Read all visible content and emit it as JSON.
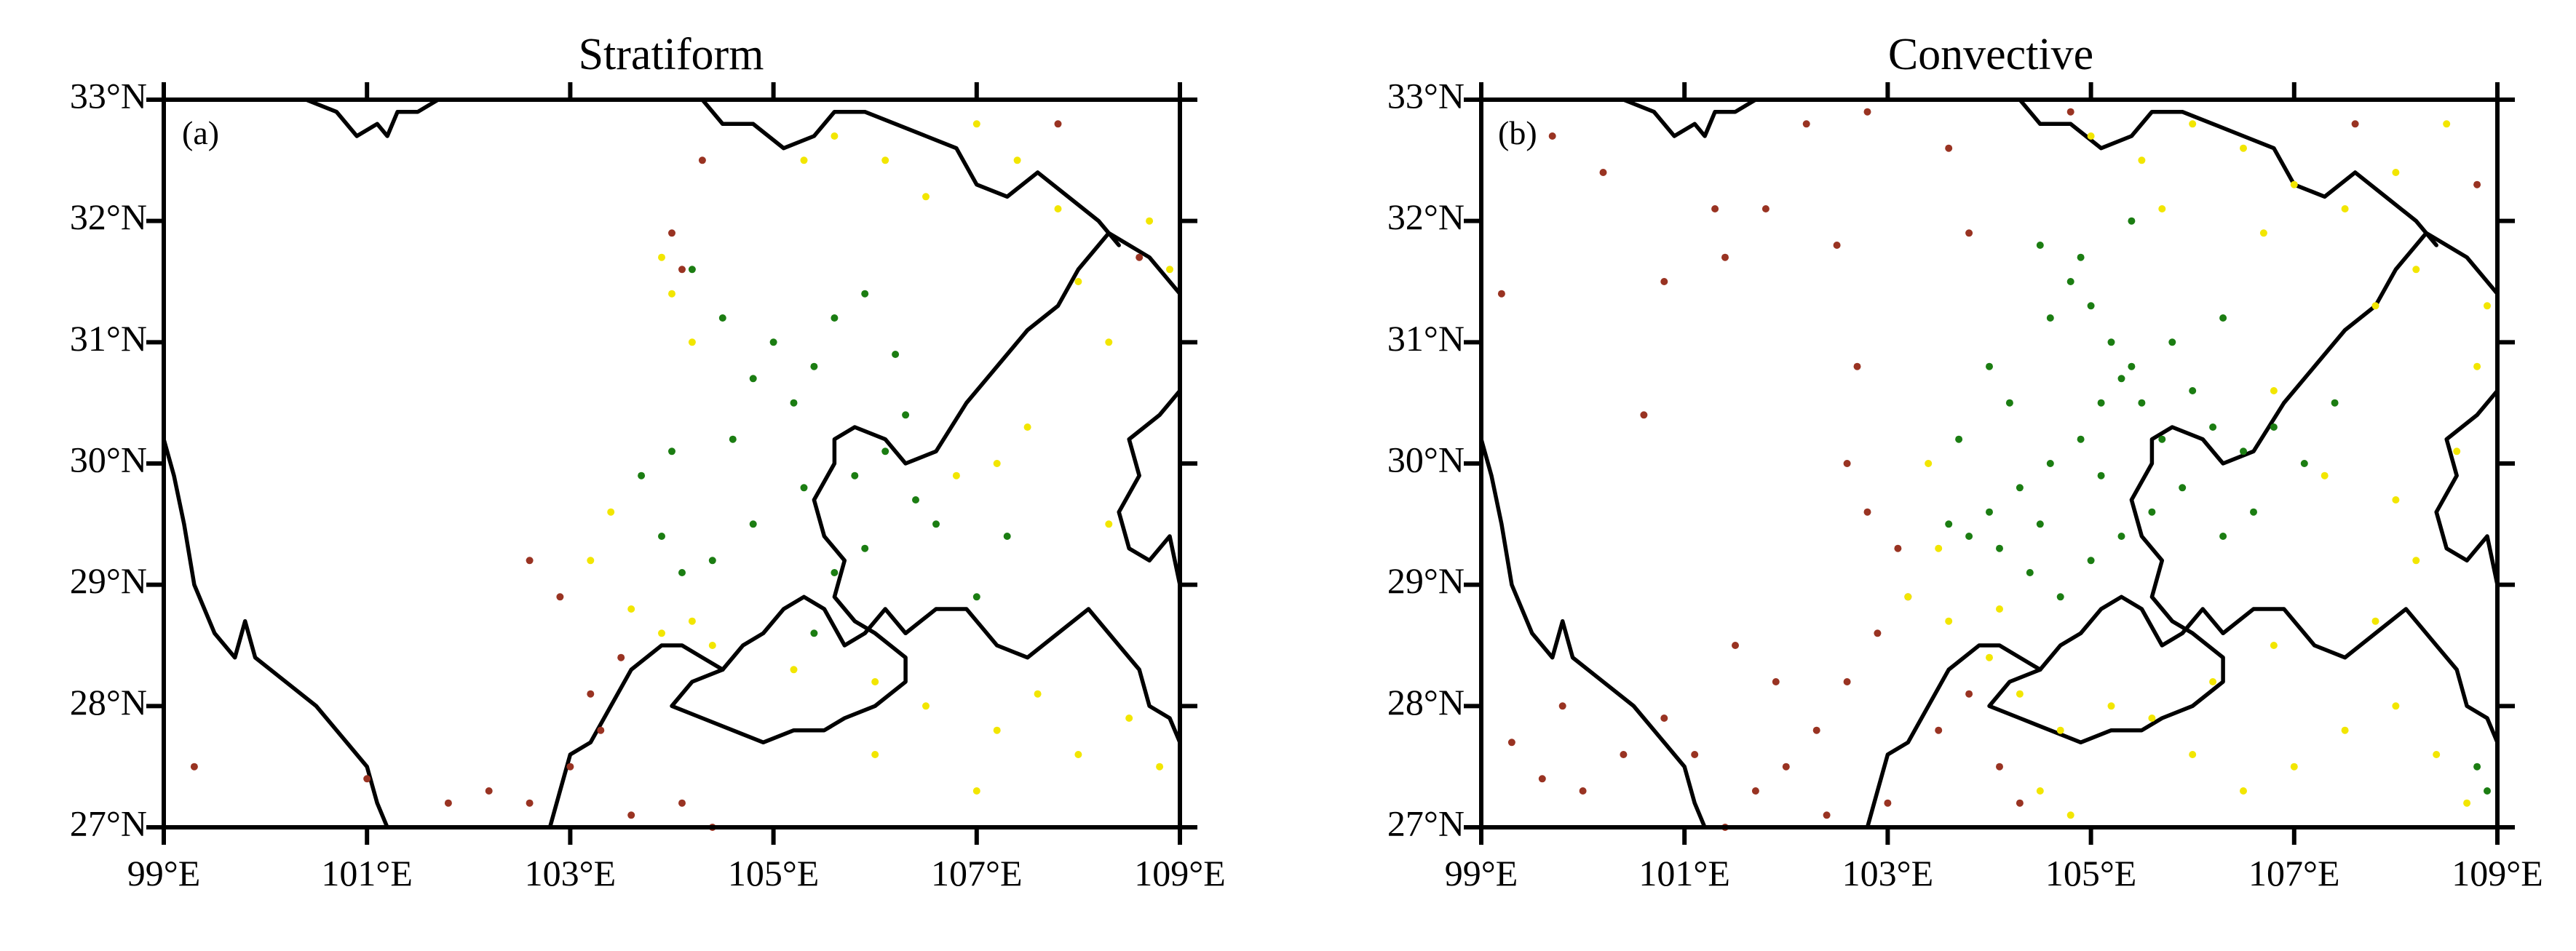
{
  "figure": {
    "panels": [
      {
        "title": "Stratiform",
        "letter": "(a)",
        "lat_labels": [
          "33°N",
          "32°N",
          "31°N",
          "30°N",
          "29°N",
          "28°N",
          "27°N"
        ],
        "lon_labels": [
          "99°E",
          "101°E",
          "103°E",
          "105°E",
          "107°E",
          "109°E"
        ]
      },
      {
        "title": "Convective",
        "letter": "(b)",
        "lat_labels": [
          "33°N",
          "32°N",
          "31°N",
          "30°N",
          "29°N",
          "28°N",
          "27°N"
        ],
        "lon_labels": [
          "99°E",
          "101°E",
          "103°E",
          "105°E",
          "107°E",
          "109°E"
        ]
      }
    ]
  },
  "map": {
    "extent": {
      "lon": [
        99,
        109
      ],
      "lat": [
        27,
        33
      ]
    },
    "lat_ticks": [
      33,
      32,
      31,
      30,
      29,
      28,
      27
    ],
    "lon_ticks": [
      99,
      101,
      103,
      105,
      107,
      109
    ],
    "point_colors": {
      "green": "#1b7d12",
      "yellow": "#f2e600",
      "brown": "#993322"
    },
    "boundaries": [
      [
        [
          99.0,
          30.2
        ],
        [
          99.1,
          29.9
        ],
        [
          99.2,
          29.5
        ],
        [
          99.3,
          29.0
        ],
        [
          99.5,
          28.6
        ],
        [
          99.7,
          28.4
        ],
        [
          99.8,
          28.7
        ],
        [
          99.9,
          28.4
        ],
        [
          100.2,
          28.2
        ],
        [
          100.5,
          28.0
        ],
        [
          100.8,
          27.7
        ],
        [
          101.0,
          27.5
        ],
        [
          101.1,
          27.2
        ],
        [
          101.2,
          27.0
        ]
      ],
      [
        [
          100.4,
          33.0
        ],
        [
          100.7,
          32.9
        ],
        [
          100.9,
          32.7
        ],
        [
          101.1,
          32.8
        ],
        [
          101.2,
          32.7
        ],
        [
          101.3,
          32.9
        ],
        [
          101.5,
          32.9
        ],
        [
          101.7,
          33.0
        ]
      ],
      [
        [
          102.8,
          27.0
        ],
        [
          102.9,
          27.3
        ],
        [
          103.0,
          27.6
        ],
        [
          103.2,
          27.7
        ],
        [
          103.4,
          28.0
        ],
        [
          103.6,
          28.3
        ],
        [
          103.9,
          28.5
        ],
        [
          104.1,
          28.5
        ],
        [
          104.3,
          28.4
        ],
        [
          104.5,
          28.3
        ]
      ],
      [
        [
          104.5,
          28.3
        ],
        [
          104.2,
          28.2
        ],
        [
          104.0,
          28.0
        ],
        [
          104.3,
          27.9
        ],
        [
          104.6,
          27.8
        ],
        [
          104.9,
          27.7
        ],
        [
          105.2,
          27.8
        ],
        [
          105.5,
          27.8
        ],
        [
          105.7,
          27.9
        ],
        [
          106.0,
          28.0
        ],
        [
          106.3,
          28.2
        ],
        [
          106.3,
          28.4
        ],
        [
          106.0,
          28.6
        ],
        [
          105.8,
          28.7
        ],
        [
          105.6,
          28.9
        ],
        [
          105.7,
          29.2
        ],
        [
          105.5,
          29.4
        ],
        [
          105.4,
          29.7
        ],
        [
          105.6,
          30.0
        ],
        [
          105.6,
          30.2
        ],
        [
          105.8,
          30.3
        ],
        [
          106.1,
          30.2
        ],
        [
          106.3,
          30.0
        ],
        [
          106.6,
          30.1
        ],
        [
          106.9,
          30.5
        ],
        [
          107.2,
          30.8
        ],
        [
          107.5,
          31.1
        ],
        [
          107.8,
          31.3
        ],
        [
          108.0,
          31.6
        ],
        [
          108.3,
          31.9
        ],
        [
          108.5,
          31.8
        ],
        [
          108.7,
          31.7
        ],
        [
          109.0,
          31.4
        ]
      ],
      [
        [
          104.5,
          28.3
        ],
        [
          104.7,
          28.5
        ],
        [
          104.9,
          28.6
        ],
        [
          105.1,
          28.8
        ],
        [
          105.3,
          28.9
        ],
        [
          105.5,
          28.8
        ],
        [
          105.7,
          28.5
        ],
        [
          105.9,
          28.6
        ],
        [
          106.1,
          28.8
        ],
        [
          106.3,
          28.6
        ],
        [
          106.6,
          28.8
        ],
        [
          106.9,
          28.8
        ],
        [
          107.2,
          28.5
        ],
        [
          107.5,
          28.4
        ],
        [
          107.8,
          28.6
        ],
        [
          108.1,
          28.8
        ],
        [
          108.4,
          28.5
        ],
        [
          108.6,
          28.3
        ],
        [
          108.7,
          28.0
        ],
        [
          108.9,
          27.9
        ],
        [
          109.0,
          27.7
        ]
      ],
      [
        [
          104.3,
          33.0
        ],
        [
          104.5,
          32.8
        ],
        [
          104.8,
          32.8
        ],
        [
          105.1,
          32.6
        ],
        [
          105.4,
          32.7
        ],
        [
          105.6,
          32.9
        ],
        [
          105.9,
          32.9
        ],
        [
          106.2,
          32.8
        ],
        [
          106.5,
          32.7
        ],
        [
          106.8,
          32.6
        ],
        [
          107.0,
          32.3
        ],
        [
          107.3,
          32.2
        ],
        [
          107.6,
          32.4
        ],
        [
          107.9,
          32.2
        ],
        [
          108.2,
          32.0
        ],
        [
          108.4,
          31.8
        ]
      ],
      [
        [
          109.0,
          30.6
        ],
        [
          108.8,
          30.4
        ],
        [
          108.5,
          30.2
        ],
        [
          108.6,
          29.9
        ],
        [
          108.4,
          29.6
        ],
        [
          108.5,
          29.3
        ],
        [
          108.7,
          29.2
        ],
        [
          108.9,
          29.4
        ],
        [
          109.0,
          29.0
        ]
      ]
    ],
    "series": {
      "stratiform": {
        "green": [
          [
            104.2,
            31.6
          ],
          [
            104.5,
            31.2
          ],
          [
            104.8,
            30.7
          ],
          [
            105.2,
            30.5
          ],
          [
            105.4,
            30.8
          ],
          [
            105.6,
            31.2
          ],
          [
            105.0,
            31.0
          ],
          [
            104.6,
            30.2
          ],
          [
            104.0,
            30.1
          ],
          [
            103.7,
            29.9
          ],
          [
            103.9,
            29.4
          ],
          [
            104.1,
            29.1
          ],
          [
            104.4,
            29.2
          ],
          [
            104.8,
            29.5
          ],
          [
            105.3,
            29.8
          ],
          [
            105.8,
            29.9
          ],
          [
            106.1,
            30.1
          ],
          [
            106.3,
            30.4
          ],
          [
            106.4,
            29.7
          ],
          [
            106.6,
            29.5
          ],
          [
            105.9,
            29.3
          ],
          [
            105.6,
            29.1
          ],
          [
            105.4,
            28.6
          ],
          [
            107.0,
            28.9
          ],
          [
            107.3,
            29.4
          ],
          [
            106.2,
            30.9
          ],
          [
            105.9,
            31.4
          ]
        ],
        "yellow": [
          [
            105.3,
            32.5
          ],
          [
            105.6,
            32.7
          ],
          [
            106.1,
            32.5
          ],
          [
            106.5,
            32.2
          ],
          [
            107.0,
            32.8
          ],
          [
            107.4,
            32.5
          ],
          [
            107.8,
            32.1
          ],
          [
            108.0,
            31.5
          ],
          [
            108.3,
            31.0
          ],
          [
            108.7,
            32.0
          ],
          [
            108.9,
            31.6
          ],
          [
            107.5,
            30.3
          ],
          [
            107.2,
            30.0
          ],
          [
            106.8,
            29.9
          ],
          [
            103.4,
            29.6
          ],
          [
            103.2,
            29.2
          ],
          [
            103.6,
            28.8
          ],
          [
            103.9,
            28.6
          ],
          [
            104.2,
            28.7
          ],
          [
            104.4,
            28.5
          ],
          [
            105.2,
            28.3
          ],
          [
            106.0,
            28.2
          ],
          [
            106.5,
            28.0
          ],
          [
            107.2,
            27.8
          ],
          [
            107.6,
            28.1
          ],
          [
            108.0,
            27.6
          ],
          [
            108.5,
            27.9
          ],
          [
            108.8,
            27.5
          ],
          [
            108.3,
            29.5
          ],
          [
            104.0,
            31.4
          ],
          [
            104.2,
            31.0
          ],
          [
            103.9,
            31.7
          ],
          [
            107.0,
            27.3
          ],
          [
            106.0,
            27.6
          ]
        ],
        "brown": [
          [
            99.3,
            27.5
          ],
          [
            101.0,
            27.4
          ],
          [
            101.8,
            27.2
          ],
          [
            102.2,
            27.3
          ],
          [
            102.6,
            27.2
          ],
          [
            103.0,
            27.5
          ],
          [
            103.3,
            27.8
          ],
          [
            103.6,
            27.1
          ],
          [
            104.1,
            27.2
          ],
          [
            104.4,
            27.0
          ],
          [
            102.6,
            29.2
          ],
          [
            102.9,
            28.9
          ],
          [
            103.5,
            28.4
          ],
          [
            103.2,
            28.1
          ],
          [
            104.0,
            31.9
          ],
          [
            104.1,
            31.6
          ],
          [
            104.3,
            32.5
          ],
          [
            107.8,
            32.8
          ],
          [
            108.6,
            31.7
          ]
        ]
      },
      "convective": {
        "green": [
          [
            104.5,
            31.8
          ],
          [
            104.8,
            31.5
          ],
          [
            105.0,
            31.3
          ],
          [
            105.2,
            31.0
          ],
          [
            105.4,
            30.8
          ],
          [
            105.1,
            30.5
          ],
          [
            104.9,
            30.2
          ],
          [
            104.6,
            30.0
          ],
          [
            104.3,
            29.8
          ],
          [
            104.0,
            29.6
          ],
          [
            103.8,
            29.4
          ],
          [
            104.1,
            29.3
          ],
          [
            104.4,
            29.1
          ],
          [
            104.7,
            28.9
          ],
          [
            105.0,
            29.2
          ],
          [
            105.3,
            29.4
          ],
          [
            105.6,
            29.6
          ],
          [
            105.9,
            29.8
          ],
          [
            105.7,
            30.2
          ],
          [
            105.5,
            30.5
          ],
          [
            105.3,
            30.7
          ],
          [
            105.8,
            31.0
          ],
          [
            106.0,
            30.6
          ],
          [
            106.2,
            30.3
          ],
          [
            106.5,
            30.1
          ],
          [
            106.8,
            30.3
          ],
          [
            107.1,
            30.0
          ],
          [
            107.4,
            30.5
          ],
          [
            106.6,
            29.6
          ],
          [
            106.3,
            29.4
          ],
          [
            104.2,
            30.5
          ],
          [
            103.7,
            30.2
          ],
          [
            104.0,
            30.8
          ],
          [
            104.6,
            31.2
          ],
          [
            105.4,
            32.0
          ],
          [
            104.9,
            31.7
          ],
          [
            105.1,
            29.9
          ],
          [
            104.5,
            29.5
          ],
          [
            103.6,
            29.5
          ],
          [
            106.3,
            31.2
          ],
          [
            108.8,
            27.5
          ],
          [
            108.9,
            27.3
          ]
        ],
        "yellow": [
          [
            105.0,
            32.7
          ],
          [
            105.5,
            32.5
          ],
          [
            106.0,
            32.8
          ],
          [
            106.5,
            32.6
          ],
          [
            107.0,
            32.3
          ],
          [
            107.5,
            32.1
          ],
          [
            108.0,
            32.4
          ],
          [
            108.5,
            32.8
          ],
          [
            108.2,
            31.6
          ],
          [
            107.8,
            31.3
          ],
          [
            106.7,
            31.9
          ],
          [
            105.7,
            32.1
          ],
          [
            103.5,
            29.3
          ],
          [
            103.2,
            28.9
          ],
          [
            103.6,
            28.7
          ],
          [
            104.0,
            28.4
          ],
          [
            104.3,
            28.1
          ],
          [
            104.7,
            27.8
          ],
          [
            105.2,
            28.0
          ],
          [
            105.6,
            27.9
          ],
          [
            106.0,
            27.6
          ],
          [
            106.5,
            27.3
          ],
          [
            107.0,
            27.5
          ],
          [
            107.5,
            27.8
          ],
          [
            108.0,
            28.0
          ],
          [
            108.4,
            27.6
          ],
          [
            108.7,
            27.2
          ],
          [
            107.8,
            28.7
          ],
          [
            108.2,
            29.2
          ],
          [
            108.0,
            29.7
          ],
          [
            108.6,
            30.1
          ],
          [
            108.8,
            30.8
          ],
          [
            106.8,
            28.5
          ],
          [
            106.2,
            28.2
          ],
          [
            104.5,
            27.3
          ],
          [
            104.8,
            27.1
          ],
          [
            103.4,
            30.0
          ],
          [
            104.1,
            28.8
          ],
          [
            107.3,
            29.9
          ],
          [
            106.8,
            30.6
          ],
          [
            108.9,
            31.3
          ]
        ],
        "brown": [
          [
            99.2,
            31.4
          ],
          [
            99.7,
            32.7
          ],
          [
            100.2,
            32.4
          ],
          [
            100.6,
            30.4
          ],
          [
            100.8,
            31.5
          ],
          [
            101.3,
            32.1
          ],
          [
            101.4,
            31.7
          ],
          [
            101.8,
            32.1
          ],
          [
            102.2,
            32.8
          ],
          [
            102.8,
            32.9
          ],
          [
            102.5,
            31.8
          ],
          [
            102.7,
            30.8
          ],
          [
            102.6,
            30.0
          ],
          [
            102.8,
            29.6
          ],
          [
            103.1,
            29.3
          ],
          [
            103.2,
            28.9
          ],
          [
            102.9,
            28.6
          ],
          [
            102.6,
            28.2
          ],
          [
            102.3,
            27.8
          ],
          [
            102.0,
            27.5
          ],
          [
            101.7,
            27.3
          ],
          [
            101.4,
            27.0
          ],
          [
            101.1,
            27.6
          ],
          [
            100.8,
            27.9
          ],
          [
            100.4,
            27.6
          ],
          [
            100.0,
            27.3
          ],
          [
            99.6,
            27.4
          ],
          [
            99.3,
            27.7
          ],
          [
            99.8,
            28.0
          ],
          [
            101.5,
            28.5
          ],
          [
            101.9,
            28.2
          ],
          [
            102.4,
            27.1
          ],
          [
            103.0,
            27.2
          ],
          [
            103.5,
            27.8
          ],
          [
            103.8,
            28.1
          ],
          [
            104.1,
            27.5
          ],
          [
            104.3,
            27.2
          ],
          [
            104.8,
            32.9
          ],
          [
            107.6,
            32.8
          ],
          [
            108.8,
            32.3
          ],
          [
            103.6,
            32.6
          ],
          [
            103.8,
            31.9
          ]
        ]
      }
    }
  }
}
